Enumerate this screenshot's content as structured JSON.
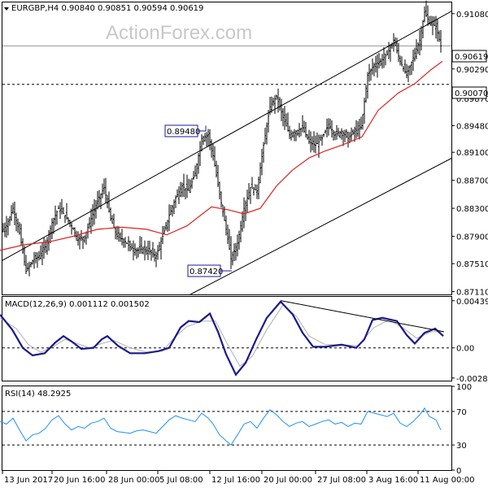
{
  "chart_data": [
    {
      "type": "candlestick",
      "header": "EURGBP,H4  0.90840 0.90851 0.90594 0.90619",
      "watermark": "ActionForex.com",
      "y_ticks": [
        "0.91080",
        "0.90290",
        "0.89870",
        "0.89480",
        "0.89100",
        "0.88700",
        "0.88300",
        "0.87900",
        "0.87510",
        "0.87110"
      ],
      "y_tick_values": [
        0.9108,
        0.9029,
        0.8987,
        0.8948,
        0.891,
        0.887,
        0.883,
        0.879,
        0.8751,
        0.8711
      ],
      "ylim": [
        0.8707,
        0.9124
      ],
      "x_ticks": [
        "13 Jun 2017",
        "20 Jun 16:00",
        "28 Jun 00:00",
        "5 Jul 08:00",
        "12 Jul 16:00",
        "20 Jul 00:00",
        "27 Jul 08:00",
        "3 Aug 16:00",
        "11 Aug 00:00"
      ],
      "current_price": "0.90619",
      "current_value": 0.90619,
      "level_label": "0.90070",
      "level_value": 0.9007,
      "annotations": [
        {
          "text": "0.89480",
          "value": 0.8948
        },
        {
          "text": "0.87420",
          "value": 0.8742
        }
      ],
      "close_path": [
        [
          0,
          0.8795
        ],
        [
          8,
          0.8805
        ],
        [
          16,
          0.883
        ],
        [
          24,
          0.8795
        ],
        [
          32,
          0.874
        ],
        [
          40,
          0.8755
        ],
        [
          48,
          0.8762
        ],
        [
          56,
          0.8775
        ],
        [
          64,
          0.881
        ],
        [
          72,
          0.883
        ],
        [
          80,
          0.882
        ],
        [
          88,
          0.8805
        ],
        [
          96,
          0.8785
        ],
        [
          104,
          0.879
        ],
        [
          112,
          0.8815
        ],
        [
          120,
          0.884
        ],
        [
          128,
          0.886
        ],
        [
          136,
          0.8815
        ],
        [
          144,
          0.879
        ],
        [
          152,
          0.8785
        ],
        [
          160,
          0.8775
        ],
        [
          168,
          0.877
        ],
        [
          176,
          0.8772
        ],
        [
          184,
          0.8768
        ],
        [
          192,
          0.8762
        ],
        [
          200,
          0.879
        ],
        [
          208,
          0.882
        ],
        [
          216,
          0.8845
        ],
        [
          224,
          0.8862
        ],
        [
          232,
          0.8855
        ],
        [
          240,
          0.888
        ],
        [
          248,
          0.893
        ],
        [
          256,
          0.8935
        ],
        [
          262,
          0.8905
        ],
        [
          270,
          0.885
        ],
        [
          278,
          0.88
        ],
        [
          284,
          0.8758
        ],
        [
          292,
          0.878
        ],
        [
          300,
          0.883
        ],
        [
          308,
          0.886
        ],
        [
          316,
          0.8855
        ],
        [
          324,
          0.892
        ],
        [
          332,
          0.8975
        ],
        [
          340,
          0.899
        ],
        [
          348,
          0.896
        ],
        [
          356,
          0.8935
        ],
        [
          364,
          0.894
        ],
        [
          372,
          0.8945
        ],
        [
          380,
          0.8925
        ],
        [
          388,
          0.892
        ],
        [
          396,
          0.893
        ],
        [
          404,
          0.895
        ],
        [
          412,
          0.8935
        ],
        [
          420,
          0.894
        ],
        [
          428,
          0.893
        ],
        [
          436,
          0.894
        ],
        [
          444,
          0.8945
        ],
        [
          452,
          0.902
        ],
        [
          460,
          0.9035
        ],
        [
          468,
          0.904
        ],
        [
          476,
          0.905
        ],
        [
          484,
          0.907
        ],
        [
          492,
          0.904
        ],
        [
          500,
          0.902
        ],
        [
          508,
          0.9045
        ],
        [
          516,
          0.907
        ],
        [
          522,
          0.911
        ],
        [
          528,
          0.9095
        ],
        [
          536,
          0.909
        ],
        [
          542,
          0.9062
        ]
      ],
      "ma_path": [
        [
          0,
          0.877
        ],
        [
          30,
          0.8778
        ],
        [
          60,
          0.8782
        ],
        [
          90,
          0.879
        ],
        [
          120,
          0.88
        ],
        [
          150,
          0.8803
        ],
        [
          180,
          0.88
        ],
        [
          205,
          0.8792
        ],
        [
          230,
          0.8805
        ],
        [
          260,
          0.8832
        ],
        [
          280,
          0.8828
        ],
        [
          300,
          0.8822
        ],
        [
          320,
          0.883
        ],
        [
          340,
          0.8862
        ],
        [
          360,
          0.8885
        ],
        [
          380,
          0.8902
        ],
        [
          400,
          0.8912
        ],
        [
          420,
          0.892
        ],
        [
          445,
          0.8932
        ],
        [
          465,
          0.897
        ],
        [
          490,
          0.8995
        ],
        [
          510,
          0.9008
        ],
        [
          530,
          0.9028
        ],
        [
          544,
          0.904
        ]
      ],
      "channel_upper": [
        [
          2,
          0.8755
        ],
        [
          556,
          0.9112
        ]
      ],
      "channel_lower": [
        [
          234,
          0.8707
        ],
        [
          556,
          0.8902
        ]
      ]
    },
    {
      "type": "line",
      "label": "MACD(12,26,9) 0.001112 0.001502",
      "y_ticks": [
        "0.00439",
        "0.00",
        "-0.002805"
      ],
      "y_tick_values": [
        0.00439,
        0.0,
        -0.002805
      ],
      "ylim": [
        -0.00305,
        0.00475
      ],
      "macd_path": [
        [
          0,
          0.0031
        ],
        [
          15,
          0.0017
        ],
        [
          28,
          0.0
        ],
        [
          40,
          -0.0007
        ],
        [
          55,
          -0.0005
        ],
        [
          68,
          0.0005
        ],
        [
          78,
          0.0011
        ],
        [
          88,
          0.0006
        ],
        [
          100,
          -0.0001
        ],
        [
          115,
          0.0
        ],
        [
          125,
          0.0008
        ],
        [
          132,
          0.0011
        ],
        [
          145,
          0.0002
        ],
        [
          160,
          -0.0005
        ],
        [
          178,
          -0.0005
        ],
        [
          195,
          -0.0003
        ],
        [
          208,
          0.0
        ],
        [
          222,
          0.0019
        ],
        [
          232,
          0.0025
        ],
        [
          245,
          0.0024
        ],
        [
          258,
          0.0032
        ],
        [
          268,
          0.0015
        ],
        [
          278,
          -0.0006
        ],
        [
          290,
          -0.0025
        ],
        [
          302,
          -0.0014
        ],
        [
          315,
          0.0008
        ],
        [
          328,
          0.0028
        ],
        [
          345,
          0.0043
        ],
        [
          360,
          0.0031
        ],
        [
          372,
          0.0014
        ],
        [
          385,
          0.0001
        ],
        [
          400,
          0.0001
        ],
        [
          420,
          0.0003
        ],
        [
          438,
          0.0
        ],
        [
          448,
          0.0008
        ],
        [
          458,
          0.0026
        ],
        [
          470,
          0.0028
        ],
        [
          488,
          0.0025
        ],
        [
          500,
          0.0012
        ],
        [
          510,
          0.0004
        ],
        [
          522,
          0.0014
        ],
        [
          535,
          0.0018
        ],
        [
          545,
          0.0011
        ]
      ],
      "signal_path": [
        [
          0,
          0.0028
        ],
        [
          20,
          0.0018
        ],
        [
          35,
          0.0003
        ],
        [
          50,
          -0.0004
        ],
        [
          65,
          0.0001
        ],
        [
          80,
          0.0008
        ],
        [
          95,
          0.0004
        ],
        [
          110,
          0.0
        ],
        [
          125,
          0.0004
        ],
        [
          140,
          0.0007
        ],
        [
          160,
          0.0
        ],
        [
          180,
          -0.0004
        ],
        [
          200,
          -0.0003
        ],
        [
          215,
          0.001
        ],
        [
          230,
          0.002
        ],
        [
          250,
          0.0025
        ],
        [
          265,
          0.0025
        ],
        [
          280,
          0.0003
        ],
        [
          295,
          -0.0017
        ],
        [
          310,
          -0.0008
        ],
        [
          328,
          0.0017
        ],
        [
          348,
          0.004
        ],
        [
          365,
          0.0029
        ],
        [
          380,
          0.0011
        ],
        [
          400,
          0.0003
        ],
        [
          420,
          0.0003
        ],
        [
          440,
          0.0002
        ],
        [
          460,
          0.0019
        ],
        [
          478,
          0.0026
        ],
        [
          495,
          0.0019
        ],
        [
          512,
          0.0009
        ],
        [
          530,
          0.0015
        ],
        [
          545,
          0.0015
        ]
      ],
      "divergence_line": [
        [
          345,
          0.0044
        ],
        [
          546,
          0.0015
        ]
      ]
    },
    {
      "type": "line",
      "label": "RSI(14) 48.2925",
      "y_ticks": [
        "100",
        "70",
        "30",
        "0"
      ],
      "y_tick_values": [
        100,
        70,
        30,
        0
      ],
      "ylim": [
        0,
        100
      ],
      "levels": [
        70,
        30
      ],
      "rsi_path": [
        [
          0,
          58
        ],
        [
          8,
          55
        ],
        [
          16,
          62
        ],
        [
          24,
          48
        ],
        [
          32,
          35
        ],
        [
          40,
          42
        ],
        [
          48,
          44
        ],
        [
          56,
          50
        ],
        [
          64,
          60
        ],
        [
          72,
          65
        ],
        [
          80,
          55
        ],
        [
          88,
          48
        ],
        [
          96,
          52
        ],
        [
          104,
          50
        ],
        [
          112,
          56
        ],
        [
          120,
          58
        ],
        [
          128,
          62
        ],
        [
          136,
          50
        ],
        [
          144,
          46
        ],
        [
          152,
          45
        ],
        [
          160,
          44
        ],
        [
          168,
          47
        ],
        [
          176,
          48
        ],
        [
          184,
          46
        ],
        [
          192,
          44
        ],
        [
          200,
          52
        ],
        [
          208,
          60
        ],
        [
          216,
          65
        ],
        [
          224,
          62
        ],
        [
          232,
          60
        ],
        [
          240,
          58
        ],
        [
          248,
          68
        ],
        [
          256,
          62
        ],
        [
          262,
          55
        ],
        [
          270,
          42
        ],
        [
          278,
          35
        ],
        [
          284,
          30
        ],
        [
          292,
          42
        ],
        [
          300,
          55
        ],
        [
          308,
          58
        ],
        [
          316,
          50
        ],
        [
          324,
          62
        ],
        [
          332,
          72
        ],
        [
          340,
          66
        ],
        [
          348,
          58
        ],
        [
          356,
          52
        ],
        [
          364,
          56
        ],
        [
          372,
          58
        ],
        [
          380,
          52
        ],
        [
          388,
          55
        ],
        [
          396,
          58
        ],
        [
          404,
          60
        ],
        [
          412,
          55
        ],
        [
          420,
          57
        ],
        [
          428,
          52
        ],
        [
          436,
          56
        ],
        [
          444,
          55
        ],
        [
          452,
          70
        ],
        [
          460,
          68
        ],
        [
          468,
          66
        ],
        [
          476,
          64
        ],
        [
          484,
          68
        ],
        [
          492,
          56
        ],
        [
          500,
          52
        ],
        [
          508,
          58
        ],
        [
          516,
          66
        ],
        [
          522,
          74
        ],
        [
          528,
          64
        ],
        [
          536,
          60
        ],
        [
          542,
          48
        ]
      ]
    }
  ]
}
